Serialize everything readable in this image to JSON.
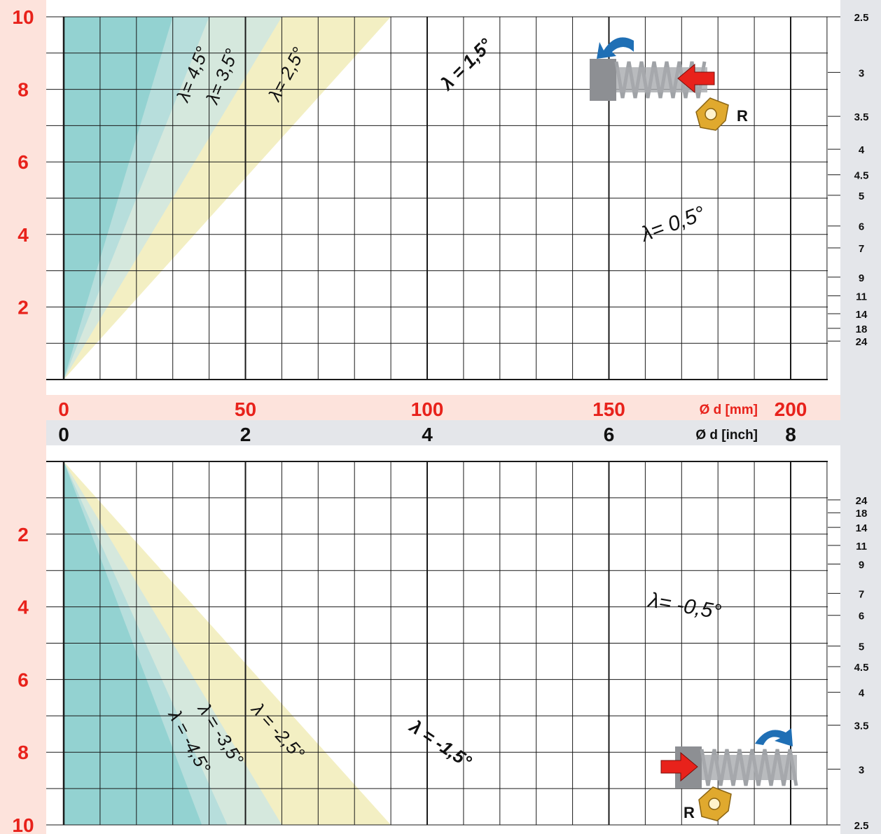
{
  "chart_data": {
    "type": "area",
    "x_mm_ticks": [
      "0",
      "50",
      "100",
      "150",
      "200"
    ],
    "x_inch_ticks": [
      "0",
      "2",
      "4",
      "6",
      "8"
    ],
    "x_mm_label": "Ø d [mm]",
    "x_inch_label": "Ø d [inch]",
    "xlim_mm": [
      0,
      210
    ],
    "top": {
      "ylim": [
        0,
        10
      ],
      "y_ticks": [
        "10",
        "8",
        "6",
        "4",
        "2"
      ],
      "tpi_ticks": [
        "2.5",
        "3",
        "3.5",
        "4",
        "4.5",
        "5",
        "6",
        "7",
        "9",
        "11",
        "14",
        "18",
        "24"
      ],
      "regions": [
        {
          "name": "λ= 4,5°",
          "boundary_at_pitch_10_mm": 30
        },
        {
          "name": "λ= 3,5°",
          "boundary_at_pitch_10_mm": 40
        },
        {
          "name": "λ= 2,5°",
          "boundary_at_pitch_10_mm": 60
        },
        {
          "name": "λ = 1,5°",
          "boundary_at_pitch_10_mm": 90
        },
        {
          "name": "λ= 0,5°",
          "boundary_at_pitch_10_mm": 183
        }
      ],
      "hand_label": "R"
    },
    "bottom": {
      "ylim": [
        0,
        10
      ],
      "y_ticks": [
        "2",
        "4",
        "6",
        "8",
        "10"
      ],
      "tpi_ticks": [
        "24",
        "18",
        "14",
        "11",
        "9",
        "7",
        "6",
        "5",
        "4.5",
        "4",
        "3.5",
        "3",
        "2.5"
      ],
      "regions": [
        {
          "name": "λ = -4,5°",
          "boundary_at_pitch_10_mm": 38
        },
        {
          "name": "λ = -3,5°",
          "boundary_at_pitch_10_mm": 45
        },
        {
          "name": "λ = -2,5°",
          "boundary_at_pitch_10_mm": 60
        },
        {
          "name": "λ = -1,5°",
          "boundary_at_pitch_10_mm": 90
        },
        {
          "name": "λ= -0,5°",
          "boundary_at_pitch_10_mm": 180
        }
      ],
      "hand_label": "R"
    },
    "colors": {
      "teal_dark": "#8dd0cf",
      "teal_mid": "#a9dadb",
      "teal_light": "#c8e6e8",
      "yellow": "#f3efc3",
      "red_text": "#e8221b",
      "pink_band": "#fde3dc",
      "grey_band": "#e4e6ea"
    }
  }
}
